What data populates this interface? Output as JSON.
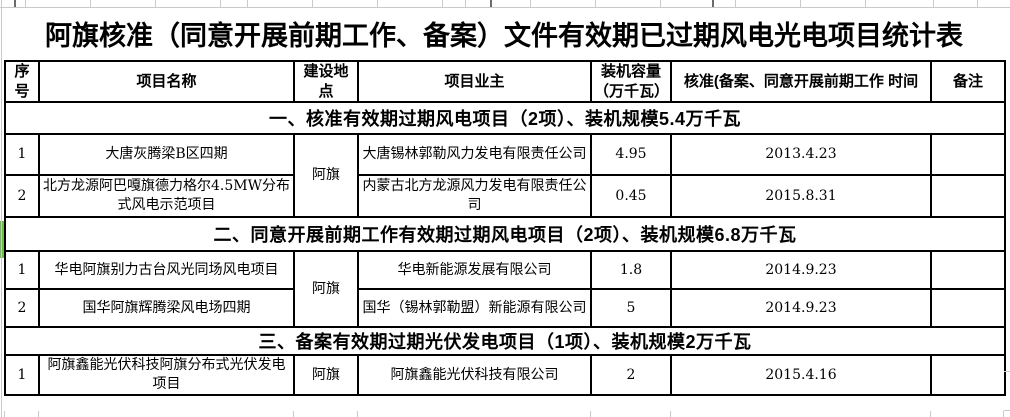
{
  "title": "阿旗核准（同意开展前期工作、备案）文件有效期已过期风电光电项目统计表",
  "columns": [
    "序号",
    "项目名称",
    "建设地点",
    "项目业主",
    "装机容量（万千瓦）",
    "核准(备案、同意开展前期工作  时间",
    "备注"
  ],
  "sections": [
    {
      "heading": "一、核准有效期过期风电项目（2项）、装机规模5.4万千瓦",
      "location": "阿旗",
      "rows": [
        {
          "no": "1",
          "name": "大唐灰腾梁B区四期",
          "owner": "大唐锡林郭勒风力发电有限责任公司",
          "capacity": "4.95",
          "date": "2013.4.23",
          "remark": ""
        },
        {
          "no": "2",
          "name": "北方龙源阿巴嘎旗德力格尔4.5MW分布式风电示范项目",
          "owner": "内蒙古北方龙源风力发电有限责任公司",
          "capacity": "0.45",
          "date": "2015.8.31",
          "remark": ""
        }
      ]
    },
    {
      "heading": "二、同意开展前期工作有效期过期风电项目（2项）、装机规模6.8万千瓦",
      "location": "阿旗",
      "rows": [
        {
          "no": "1",
          "name": "华电阿旗别力古台风光同场风电项目",
          "owner": "华电新能源发展有限公司",
          "capacity": "1.8",
          "date": "2014.9.23",
          "remark": ""
        },
        {
          "no": "2",
          "name": "国华阿旗辉腾梁风电场四期",
          "owner": "国华（锡林郭勒盟）新能源有限公司",
          "capacity": "5",
          "date": "2014.9.23",
          "remark": ""
        }
      ]
    },
    {
      "heading": "三、备案有效期过期光伏发电项目（1项）、装机规模2万千瓦",
      "location": "阿旗",
      "rows": [
        {
          "no": "1",
          "name": "阿旗鑫能光伏科技阿旗分布式光伏发电项目",
          "owner": "阿旗鑫能光伏科技有限公司",
          "capacity": "2",
          "date": "2015.4.16",
          "remark": ""
        }
      ]
    }
  ],
  "colors": {
    "marker_green": "#6abf47",
    "table_border": "#000000",
    "gridline_gray": "#c9c9c9"
  }
}
